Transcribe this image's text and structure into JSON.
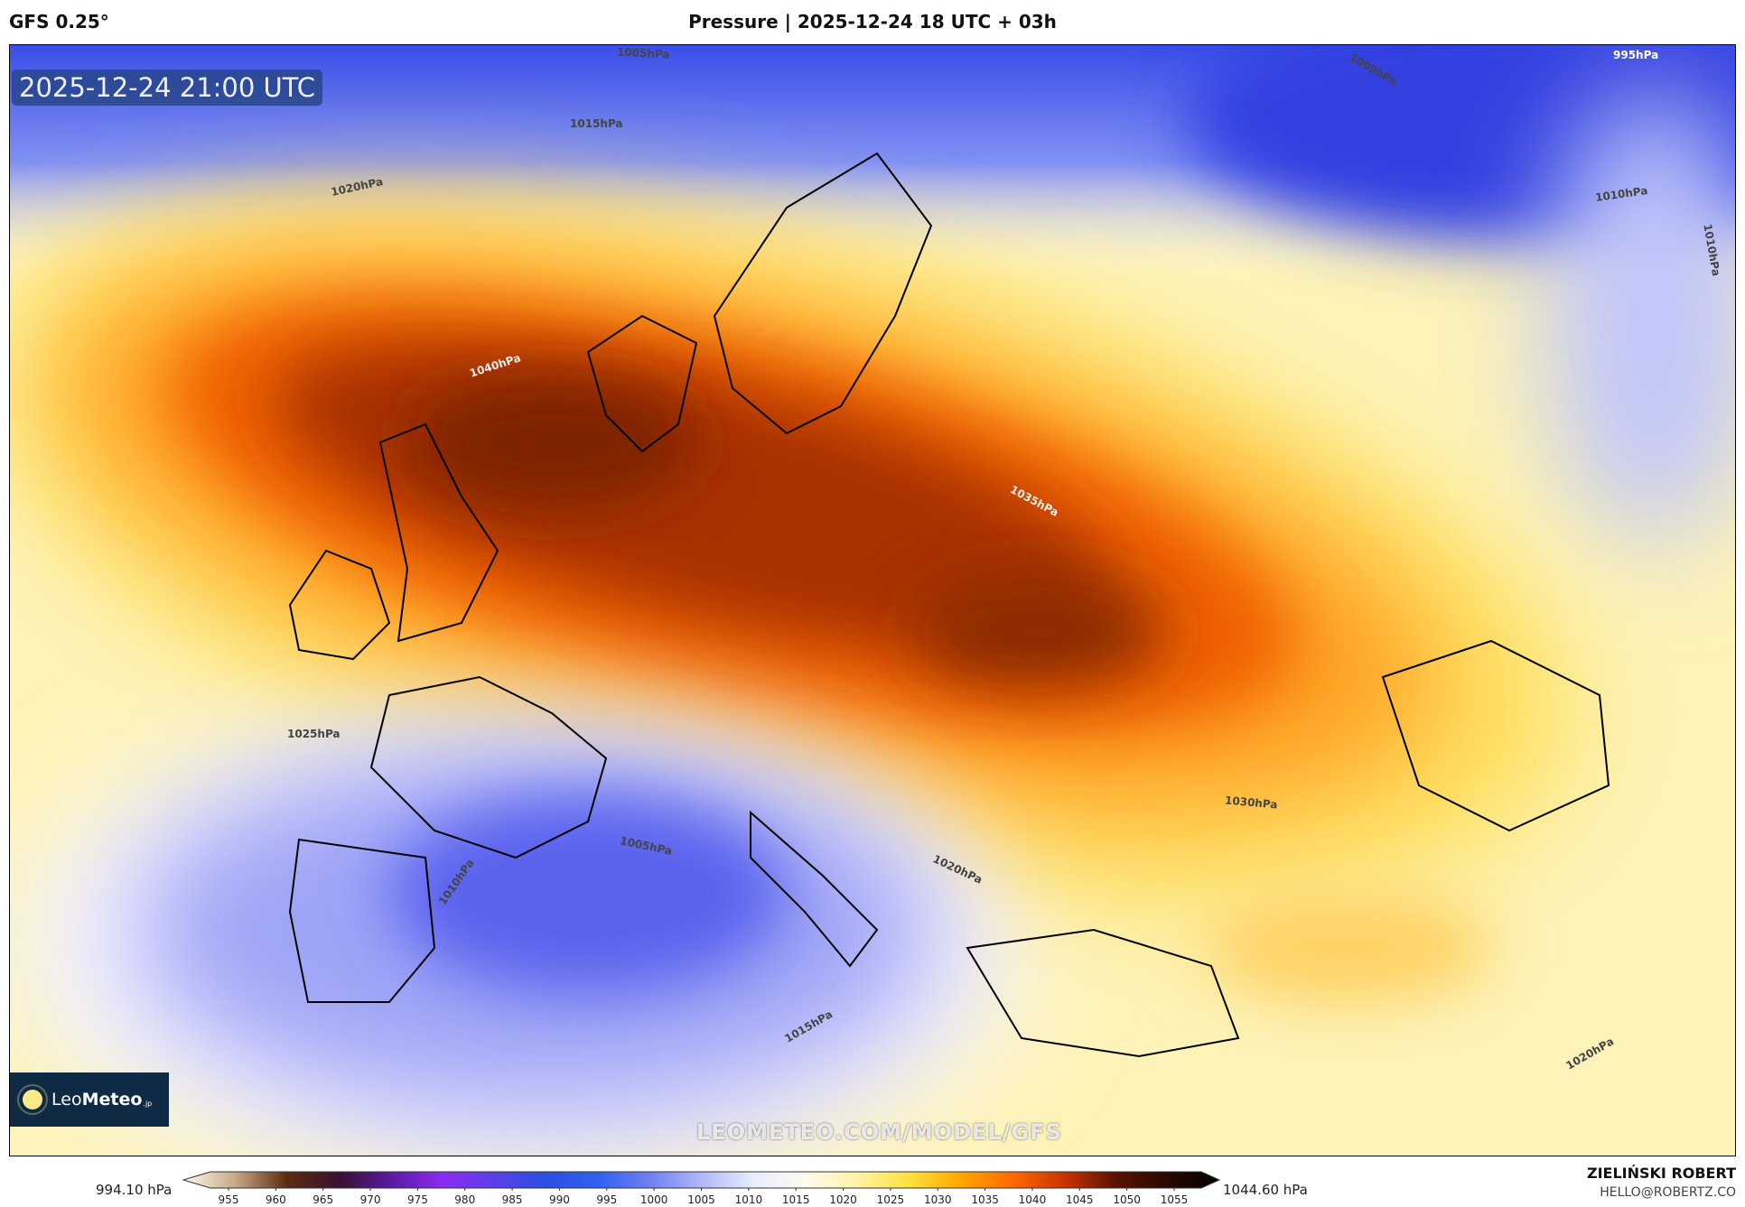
{
  "header": {
    "model": "GFS 0.25°",
    "title": "Pressure | 2025-12-24 18 UTC + 03h"
  },
  "map": {
    "timestamp": "2025-12-24 21:00 UTC",
    "watermark": "LEOMETEO.COM/MODEL/GFS",
    "logo": {
      "part1": "Leo",
      "part2": "Meteo",
      "part3": ".jp"
    },
    "contour_labels": [
      "1005hPa",
      "1000hPa",
      "995hPa",
      "1015hPa",
      "1020hPa",
      "1010hPa",
      "1010hPa",
      "1040hPa",
      "1035hPa",
      "1025hPa",
      "1030hPa",
      "1010hPa",
      "1005hPa",
      "1020hPa",
      "1015hPa",
      "1020hPa"
    ]
  },
  "colorbar": {
    "min_label": "994.10 hPa",
    "max_label": "1044.60 hPa",
    "ticks": [
      "955",
      "960",
      "965",
      "970",
      "975",
      "980",
      "985",
      "990",
      "995",
      "1000",
      "1005",
      "1010",
      "1015",
      "1020",
      "1025",
      "1030",
      "1035",
      "1040",
      "1045",
      "1050",
      "1055"
    ],
    "colors": [
      "#fdfbf0",
      "#c8a887",
      "#5a2c10",
      "#3a1030",
      "#5a1aa0",
      "#8a2cf0",
      "#5a40e8",
      "#2a50e0",
      "#3060f0",
      "#7080f0",
      "#b0b8f8",
      "#e8ecff",
      "#fffaf0",
      "#fff4a8",
      "#ffe040",
      "#ffa800",
      "#ff6a00",
      "#c83400",
      "#5a1200",
      "#2a0800",
      "#000000"
    ]
  },
  "footer": {
    "author": "ZIELIŃSKI ROBERT",
    "email": "HELLO@ROBERTZ.CO"
  }
}
